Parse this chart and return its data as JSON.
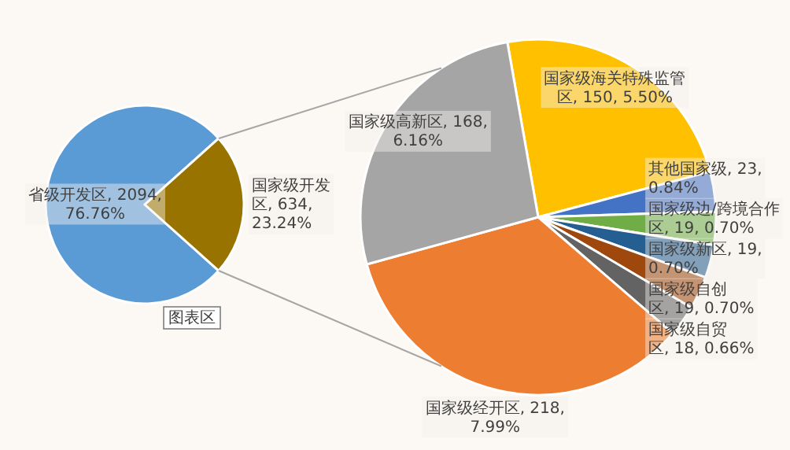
{
  "chart_data": [
    {
      "type": "pie",
      "categories": [
        "省级开发区",
        "国家级开发区"
      ],
      "values": [
        2094,
        634
      ],
      "colors": [
        "#5b9bd5",
        "#997300"
      ],
      "value_labels": [
        "2094, 76.76%",
        "634, 23.24%"
      ],
      "annotations": [
        "图表区"
      ]
    },
    {
      "type": "pie",
      "categories": [
        "国家级海关特殊监管区",
        "其他国家级",
        "国家级边/跨境合作区",
        "国家级新区",
        "国家级自创区",
        "国家级自贸区",
        "国家级经开区",
        "国家级高新区"
      ],
      "values": [
        150,
        23,
        19,
        19,
        19,
        18,
        218,
        168
      ],
      "colors": [
        "#ffc000",
        "#4472c4",
        "#70ad47",
        "#255e91",
        "#9e480e",
        "#636363",
        "#ed7d31",
        "#a5a5a5"
      ],
      "value_labels": [
        "150, 5.50%",
        "23, 0.84%",
        "19, 0.70%",
        "19, 0.70%",
        "19, 0.70%",
        "18, 0.66%",
        "218, 7.99%",
        "168, 6.16%"
      ]
    }
  ]
}
